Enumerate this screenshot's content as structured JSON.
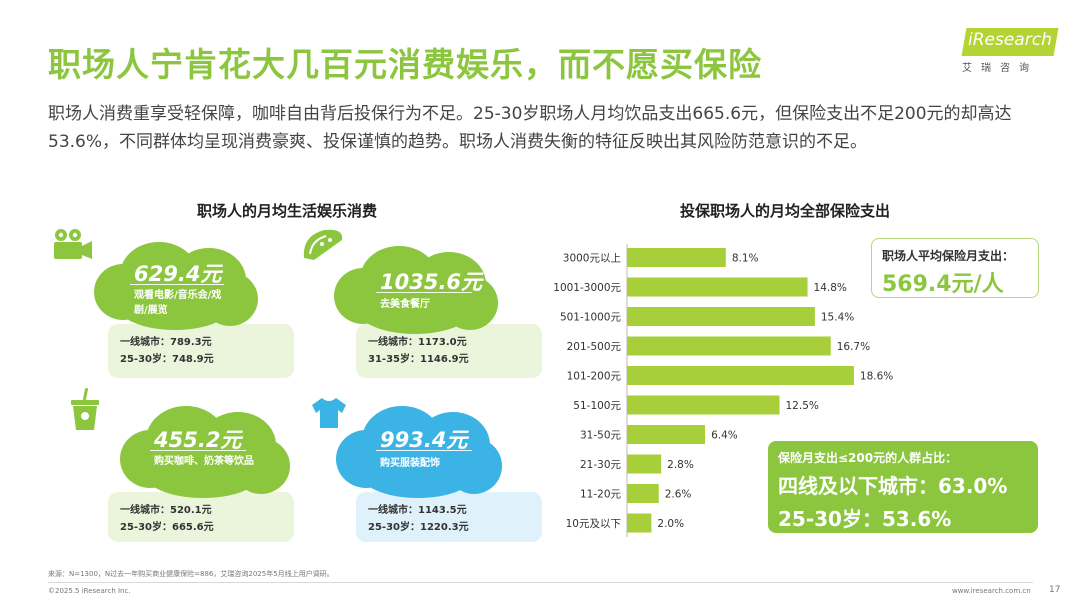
{
  "header": {
    "title": "职场人宁肯花大几百元消费娱乐，而不愿买保险",
    "logo_text": "iResearch",
    "logo_sub": "艾瑞咨询",
    "summary": "职场人消费重享受轻保障，咖啡自由背后投保行为不足。25-30岁职场人月均饮品支出665.6元，但保险支出不足200元的却高达53.6%，不同群体均呈现消费豪爽、投保谨慎的趋势。职场人消费失衡的特征反映出其风险防范意识的不足。"
  },
  "left_panel": {
    "title": "职场人的月均生活娱乐消费",
    "cards": [
      {
        "amount": "629.4元",
        "category": "观看电影/音乐会/戏剧/展览",
        "rows": [
          "一线城市：789.3元",
          "25-30岁：748.9元"
        ],
        "icon": "movie-camera-icon"
      },
      {
        "amount": "1035.6元",
        "category": "去美食餐厅",
        "rows": [
          "一线城市：1173.0元",
          "31-35岁：1146.9元"
        ],
        "icon": "taco-icon"
      },
      {
        "amount": "455.2元",
        "category": "购买咖啡、奶茶等饮品",
        "rows": [
          "一线城市：520.1元",
          "25-30岁：665.6元"
        ],
        "icon": "drink-cup-icon"
      },
      {
        "amount": "993.4元",
        "category": "购买服装配饰",
        "rows": [
          "一线城市：1143.5元",
          "25-30岁：1220.3元"
        ],
        "icon": "t-shirt-icon"
      }
    ],
    "colors": {
      "green": "#8cc63f",
      "blue": "#3bb3e5",
      "green_light": "#ebf5dc",
      "blue_light": "#dff1fa"
    }
  },
  "right_panel": {
    "title": "投保职场人的月均全部保险支出",
    "callout_avg": {
      "label": "职场人平均保险月支出：",
      "value": "569.4元/人"
    },
    "callout_share": {
      "label": "保险月支出≤200元的人群占比：",
      "lines": [
        "四线及以下城市：63.0%",
        "25-30岁：53.6%"
      ]
    }
  },
  "chart_data": {
    "type": "bar",
    "orientation": "horizontal",
    "title": "投保职场人的月均全部保险支出",
    "categories": [
      "3000元以上",
      "1001-3000元",
      "501-1000元",
      "201-500元",
      "101-200元",
      "51-100元",
      "31-50元",
      "21-30元",
      "11-20元",
      "10元及以下"
    ],
    "values": [
      8.1,
      14.8,
      15.4,
      16.7,
      18.6,
      12.5,
      6.4,
      2.8,
      2.6,
      2.0
    ],
    "value_labels": [
      "8.1%",
      "14.8%",
      "15.4%",
      "16.7%",
      "18.6%",
      "12.5%",
      "6.4%",
      "2.8%",
      "2.6%",
      "2.0%"
    ],
    "xlim": [
      0,
      20
    ],
    "grid": false,
    "bar_color": "#a6cf3a"
  },
  "footer": {
    "source": "来源：N=1300，N过去一年购买商业健康保险=886，艾瑞咨询2025年5月线上用户调研。",
    "copyright": "©2025.5 iResearch Inc.",
    "site": "www.iresearch.com.cn",
    "page": "17"
  }
}
